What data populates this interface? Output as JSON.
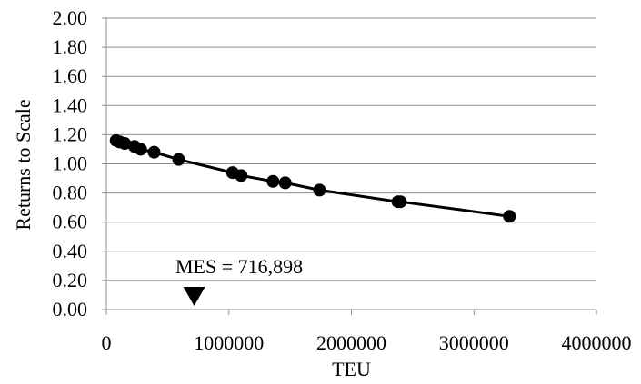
{
  "chart_data": {
    "type": "line",
    "title": "",
    "xlabel": "TEU",
    "ylabel": "Returns to Scale",
    "xlim": [
      0,
      4000000
    ],
    "ylim": [
      0,
      2
    ],
    "grid": true,
    "legend": "none",
    "x_ticks": [
      "0",
      "1000000",
      "2000000",
      "3000000",
      "4000000"
    ],
    "y_ticks": [
      "0.00",
      "0.20",
      "0.40",
      "0.60",
      "0.80",
      "1.00",
      "1.20",
      "1.40",
      "1.60",
      "1.80",
      "2.00"
    ],
    "x_tick_values": [
      0,
      1000000,
      2000000,
      3000000,
      4000000
    ],
    "y_tick_values": [
      0,
      0.2,
      0.4,
      0.6,
      0.8,
      1.0,
      1.2,
      1.4,
      1.6,
      1.8,
      2.0
    ],
    "series": [
      {
        "points": [
          {
            "x": 80000,
            "y": 1.16
          },
          {
            "x": 110000,
            "y": 1.15
          },
          {
            "x": 150000,
            "y": 1.14
          },
          {
            "x": 230000,
            "y": 1.12
          },
          {
            "x": 280000,
            "y": 1.1
          },
          {
            "x": 390000,
            "y": 1.08
          },
          {
            "x": 590000,
            "y": 1.03
          },
          {
            "x": 1030000,
            "y": 0.94
          },
          {
            "x": 1100000,
            "y": 0.92
          },
          {
            "x": 1360000,
            "y": 0.88
          },
          {
            "x": 1460000,
            "y": 0.87
          },
          {
            "x": 1740000,
            "y": 0.82
          },
          {
            "x": 2380000,
            "y": 0.74
          },
          {
            "x": 2400000,
            "y": 0.74
          },
          {
            "x": 3290000,
            "y": 0.64
          }
        ],
        "color": "#000000"
      }
    ],
    "annotation": {
      "text": "MES = 716,898",
      "marker": "down-triangle",
      "x": 716898
    }
  }
}
